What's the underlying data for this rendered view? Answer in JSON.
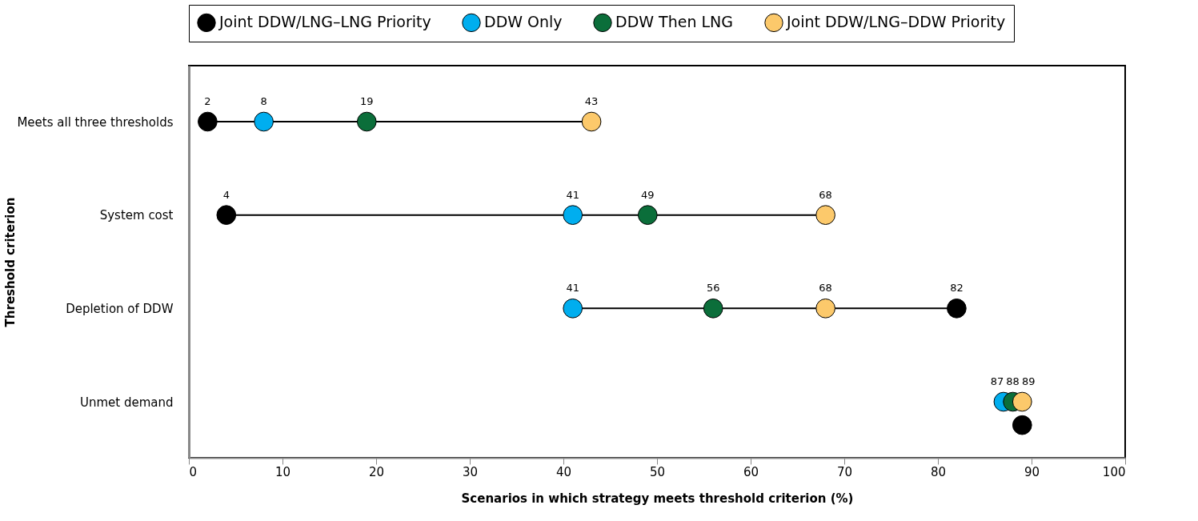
{
  "chart_data": {
    "type": "scatter",
    "orientation": "horizontal",
    "xlabel": "Scenarios in which strategy meets threshold criterion (%)",
    "ylabel": "Threshold criterion",
    "categories": [
      "Meets all three thresholds",
      "System cost",
      "Depletion of DDW",
      "Unmet demand"
    ],
    "series": [
      {
        "name": "Joint DDW/LNG–LNG Priority",
        "color": "#000000",
        "values": [
          2,
          4,
          82,
          89
        ],
        "value_labels": [
          "2",
          "4",
          "82",
          null
        ]
      },
      {
        "name": "DDW Only",
        "color": "#00aeef",
        "values": [
          8,
          41,
          41,
          87
        ],
        "value_labels": [
          "8",
          "41",
          "41",
          "87"
        ]
      },
      {
        "name": "DDW Then LNG",
        "color": "#0b6e3a",
        "values": [
          19,
          49,
          56,
          88
        ],
        "value_labels": [
          "19",
          "49",
          "56",
          "88"
        ]
      },
      {
        "name": "Joint DDW/LNG–DDW Priority",
        "color": "#fcc96b",
        "values": [
          43,
          68,
          68,
          89
        ],
        "value_labels": [
          "43",
          "68",
          "68",
          "89"
        ]
      }
    ],
    "xlim": [
      0,
      100
    ],
    "xticks": [
      0,
      10,
      20,
      30,
      40,
      50,
      60,
      70,
      80,
      90,
      100
    ],
    "legend": "top",
    "marker": "circle",
    "grid": false
  }
}
